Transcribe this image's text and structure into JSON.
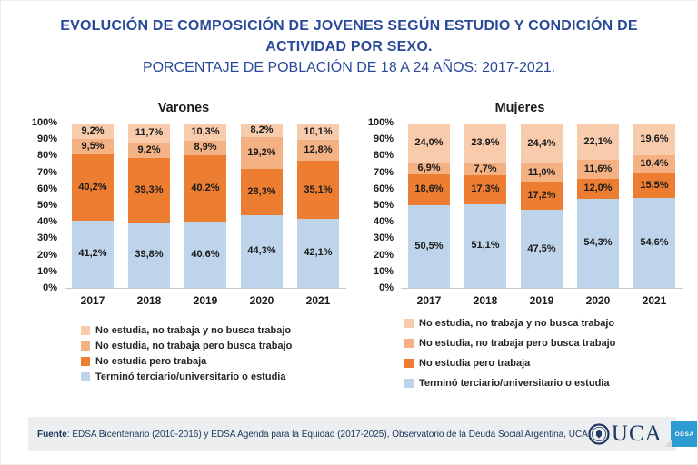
{
  "header": {
    "title_line1": "EVOLUCIÓN DE COMPOSICIÓN DE JOVENES SEGÚN ESTUDIO Y CONDICIÓN DE",
    "title_line2": "ACTIVIDAD POR SEXO.",
    "subtitle": "PORCENTAJE DE POBLACIÓN DE 18 A 24 AÑOS: 2017-2021."
  },
  "colors": {
    "seg1": "#F8CBAD",
    "seg2": "#F4B183",
    "seg3": "#ED7D31",
    "seg4": "#BDD4EA",
    "title_blue": "#2A4A99",
    "odsa_blue": "#2E9BD3",
    "uca_navy": "#1F3864",
    "footer_bg": "#EDEEEF"
  },
  "chart_data": [
    {
      "type": "bar",
      "stacked": true,
      "title": "Varones",
      "xlabel": "",
      "ylabel": "",
      "ylim": [
        0,
        100
      ],
      "ytick_step": 10,
      "ytick_suffix": "%",
      "decimal_separator": ",",
      "grid": false,
      "legend_position": "bottom",
      "categories": [
        "2017",
        "2018",
        "2019",
        "2020",
        "2021"
      ],
      "series": [
        {
          "name": "No estudia, no trabaja y no busca trabajo",
          "color_key": "seg1",
          "values": [
            9.2,
            11.7,
            10.3,
            8.2,
            10.1
          ]
        },
        {
          "name": "No estudia, no trabaja pero busca trabajo",
          "color_key": "seg2",
          "values": [
            9.5,
            9.2,
            8.9,
            19.2,
            12.8
          ]
        },
        {
          "name": "No estudia pero trabaja",
          "color_key": "seg3",
          "values": [
            40.2,
            39.3,
            40.2,
            28.3,
            35.1
          ]
        },
        {
          "name": "Terminó terciario/universitario o estudia",
          "color_key": "seg4",
          "values": [
            41.2,
            39.8,
            40.6,
            44.3,
            42.1
          ]
        }
      ]
    },
    {
      "type": "bar",
      "stacked": true,
      "title": "Mujeres",
      "xlabel": "",
      "ylabel": "",
      "ylim": [
        0,
        100
      ],
      "ytick_step": 10,
      "ytick_suffix": "%",
      "decimal_separator": ",",
      "grid": false,
      "legend_position": "bottom",
      "categories": [
        "2017",
        "2018",
        "2019",
        "2020",
        "2021"
      ],
      "series": [
        {
          "name": "No estudia, no trabaja y no busca trabajo",
          "color_key": "seg1",
          "values": [
            24.0,
            23.9,
            24.4,
            22.1,
            19.6
          ]
        },
        {
          "name": "No estudia, no trabaja pero busca trabajo",
          "color_key": "seg2",
          "values": [
            6.9,
            7.7,
            11.0,
            11.6,
            10.4
          ]
        },
        {
          "name": "No estudia pero trabaja",
          "color_key": "seg3",
          "values": [
            18.6,
            17.3,
            17.2,
            12.0,
            15.5
          ]
        },
        {
          "name": "Terminó terciario/universitario o estudia",
          "color_key": "seg4",
          "values": [
            50.5,
            51.1,
            47.5,
            54.3,
            54.6
          ]
        }
      ]
    }
  ],
  "legend": {
    "items": [
      {
        "label": "No estudia, no trabaja y no busca trabajo",
        "color_key": "seg1"
      },
      {
        "label": "No estudia, no trabaja pero busca trabajo",
        "color_key": "seg2"
      },
      {
        "label": "No estudia pero trabaja",
        "color_key": "seg3"
      },
      {
        "label": "Terminó terciario/universitario o estudia",
        "color_key": "seg4"
      }
    ]
  },
  "footer": {
    "source_label": "Fuente",
    "source_text": ": EDSA Bicentenario (2010-2016) y EDSA Agenda para la Equidad (2017-2025), Observatorio de la Deuda Social Argentina, UCA",
    "logo_text": "UCA",
    "odsa_text": "ODSA"
  }
}
